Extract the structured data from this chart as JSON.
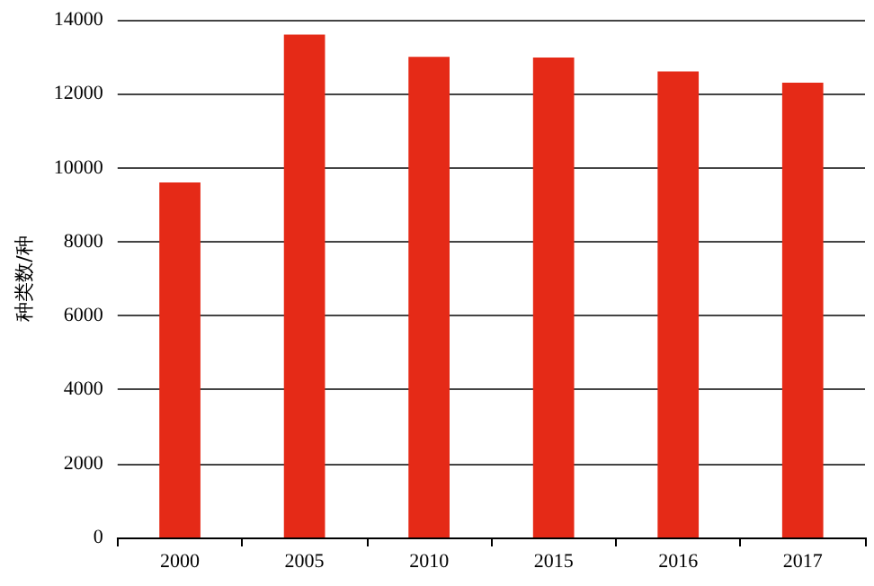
{
  "chart_data": {
    "type": "bar",
    "ylabel": "种类数/种",
    "categories": [
      "2000",
      "2005",
      "2010",
      "2015",
      "2016",
      "2017"
    ],
    "values": [
      9600,
      13600,
      13000,
      12980,
      12600,
      12300
    ],
    "color": "#e52a17",
    "ylim": [
      0,
      14000
    ],
    "yticks": [
      0,
      2000,
      4000,
      6000,
      8000,
      10000,
      12000,
      14000
    ],
    "grid": "y"
  }
}
